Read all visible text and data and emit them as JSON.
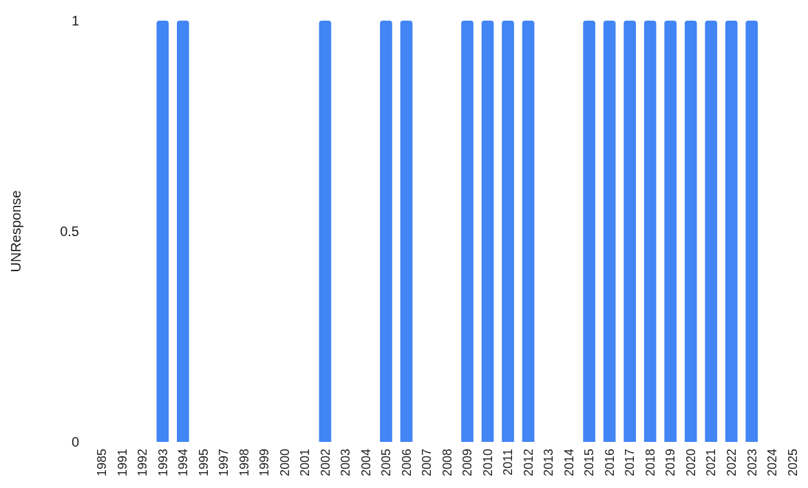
{
  "chart_data": {
    "type": "bar",
    "ylabel": "UNResponse",
    "categories": [
      "1985",
      "1991",
      "1992",
      "1993",
      "1994",
      "1995",
      "1997",
      "1998",
      "1999",
      "2000",
      "2001",
      "2002",
      "2003",
      "2004",
      "2005",
      "2006",
      "2007",
      "2008",
      "2009",
      "2010",
      "2011",
      "2012",
      "2013",
      "2014",
      "2015",
      "2016",
      "2017",
      "2018",
      "2019",
      "2020",
      "2021",
      "2022",
      "2023",
      "2024",
      "2025"
    ],
    "values": [
      0,
      0,
      0,
      1,
      1,
      0,
      0,
      0,
      0,
      0,
      0,
      1,
      0,
      0,
      1,
      1,
      0,
      0,
      1,
      1,
      1,
      1,
      0,
      0,
      1,
      1,
      1,
      1,
      1,
      1,
      1,
      1,
      1,
      0,
      0
    ],
    "color": "#4285f4",
    "ylim": [
      0,
      1
    ],
    "yticks": [
      0,
      0.5,
      1
    ],
    "grid": false
  }
}
